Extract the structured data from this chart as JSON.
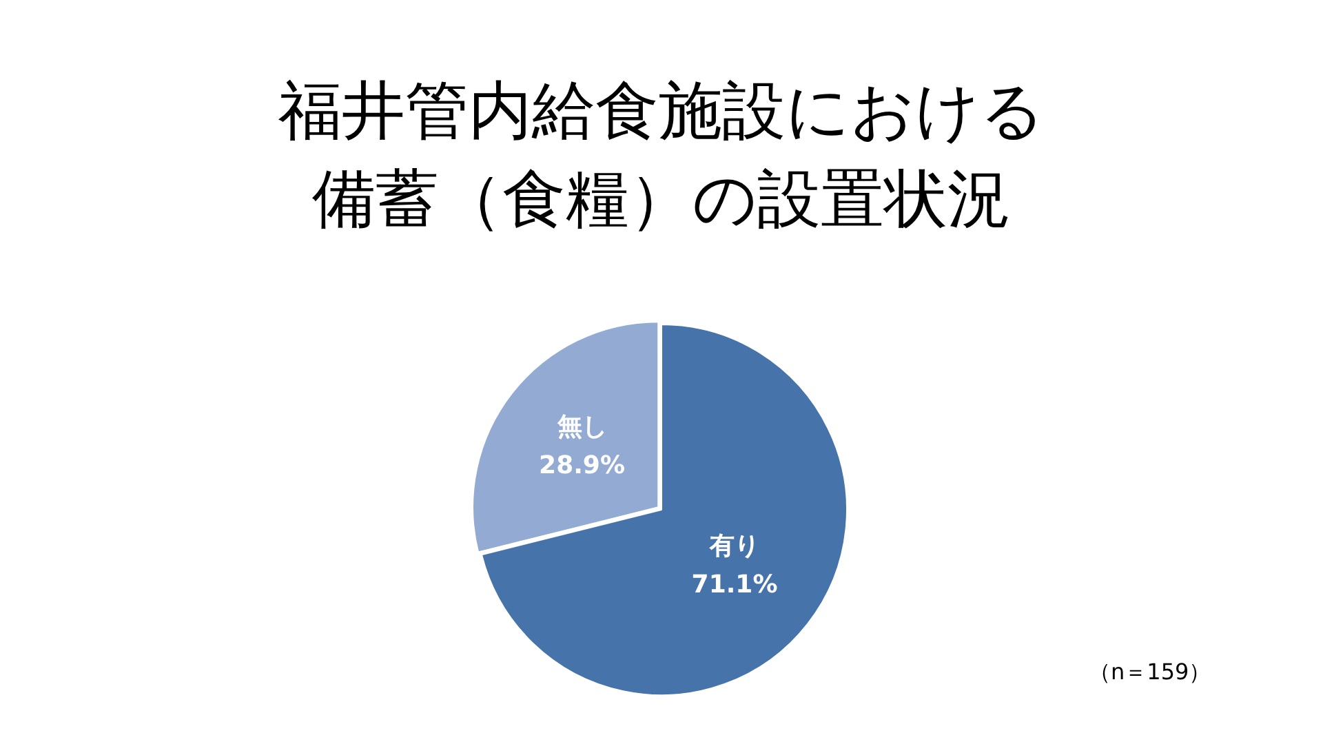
{
  "chart_data": {
    "type": "pie",
    "title": "福井管内給食施設における備蓄（食糧）の設置状況",
    "categories": [
      "有り",
      "無し"
    ],
    "values": [
      71.1,
      28.9
    ],
    "colors": [
      "#4673aa",
      "#93aad3"
    ],
    "value_labels": [
      "71.1%",
      "28.9%"
    ],
    "annotations": [
      "（n＝159）"
    ],
    "legend": false
  }
}
